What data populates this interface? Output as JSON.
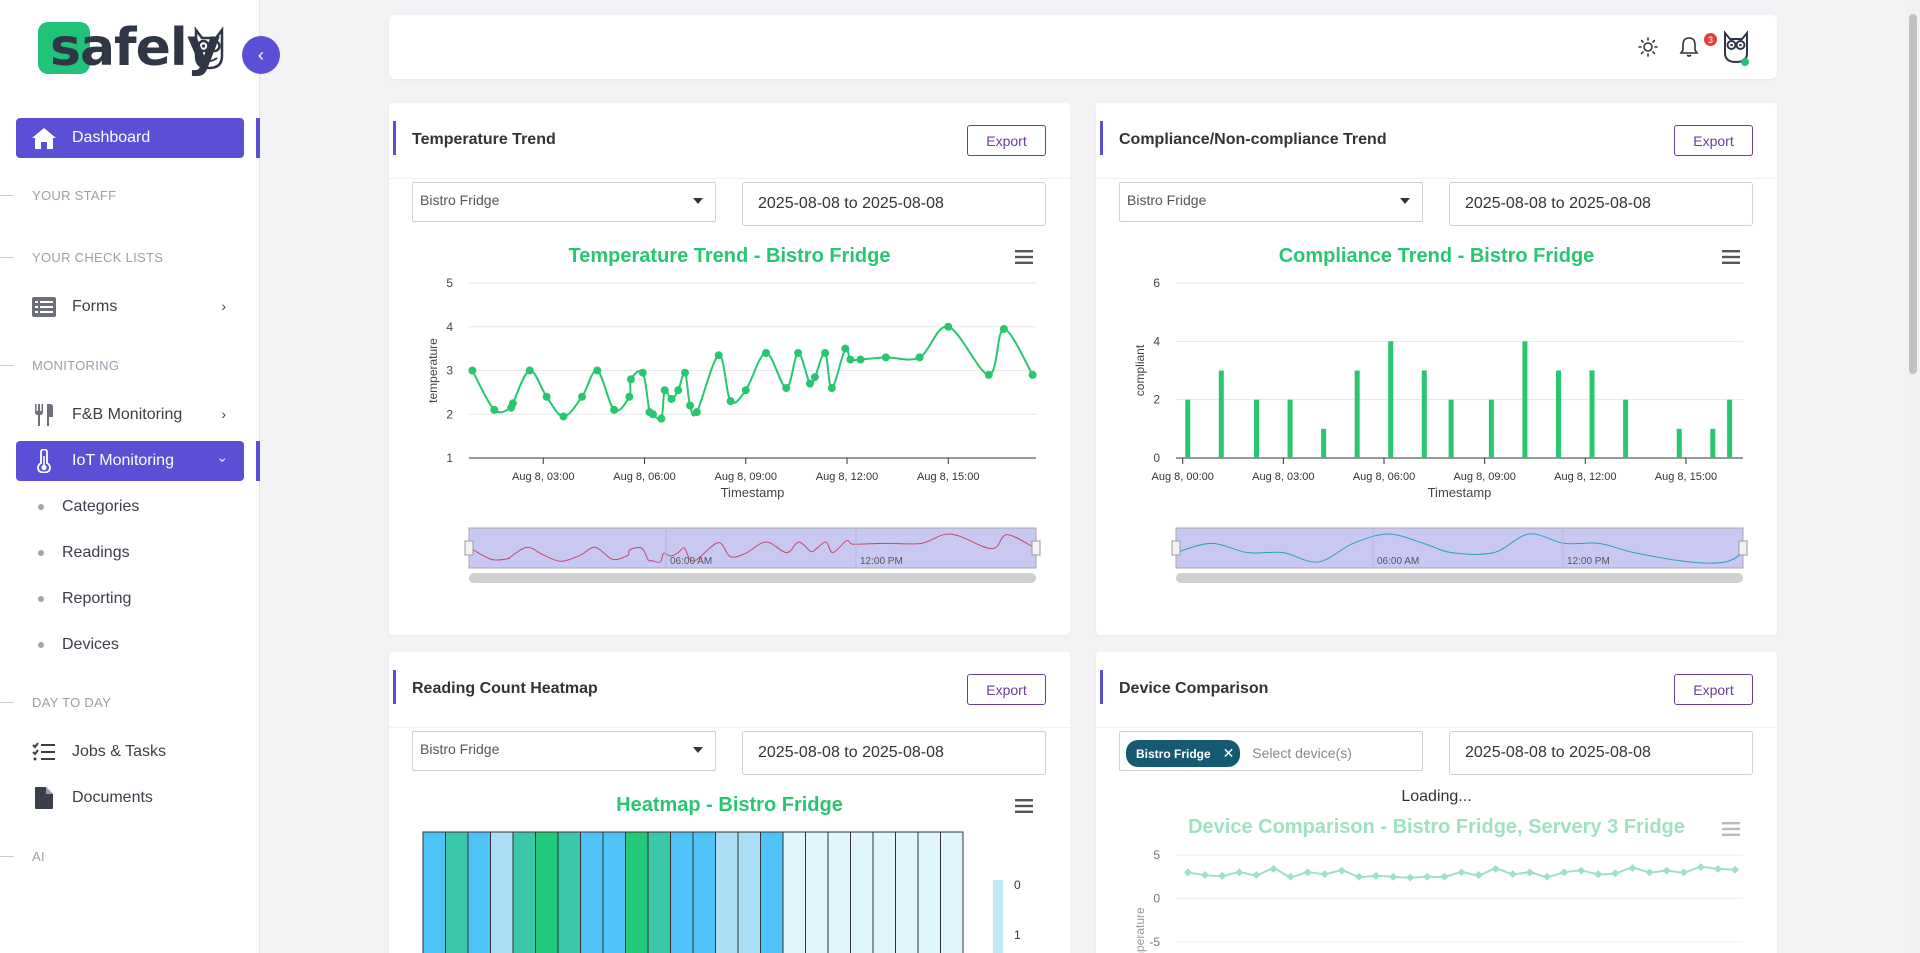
{
  "brand": {
    "name": "safely"
  },
  "sidebar": {
    "dashboard": "Dashboard",
    "sections": {
      "staff": "YOUR STAFF",
      "checklists": "YOUR CHECK LISTS",
      "monitoring": "MONITORING",
      "day": "DAY TO DAY",
      "ai": "AI"
    },
    "forms": "Forms",
    "fnb": "F&B Monitoring",
    "iot": "IoT Monitoring",
    "iot_items": [
      "Categories",
      "Readings",
      "Reporting",
      "Devices"
    ],
    "jobs": "Jobs & Tasks",
    "documents": "Documents"
  },
  "topbar": {
    "notification_count": "3"
  },
  "cards": {
    "temp": {
      "title": "Temperature Trend",
      "export": "Export",
      "device": "Bistro Fridge",
      "date": "2025-08-08 to 2025-08-08",
      "chart_title": "Temperature Trend - Bistro Fridge"
    },
    "compliance": {
      "title": "Compliance/Non-compliance Trend",
      "export": "Export",
      "device": "Bistro Fridge",
      "date": "2025-08-08 to 2025-08-08",
      "chart_title": "Compliance Trend - Bistro Fridge"
    },
    "heatmap": {
      "title": "Reading Count Heatmap",
      "export": "Export",
      "device": "Bistro Fridge",
      "date": "2025-08-08 to 2025-08-08",
      "chart_title": "Heatmap - Bistro Fridge"
    },
    "comparison": {
      "title": "Device Comparison",
      "export": "Export",
      "tag": "Bistro Fridge",
      "placeholder": "Select device(s)",
      "date": "2025-08-08 to 2025-08-08",
      "loading": "Loading...",
      "chart_title": "Device Comparison - Bistro Fridge, Servery 3 Fridge"
    }
  },
  "chart_data": [
    {
      "type": "line",
      "title": "Temperature Trend - Bistro Fridge",
      "xlabel": "Timestamp",
      "ylabel": "temperature",
      "ylim": [
        1,
        5
      ],
      "yticks": [
        1,
        2,
        3,
        4,
        5
      ],
      "xticks": [
        "Aug 8, 03:00",
        "Aug 8, 06:00",
        "Aug 8, 09:00",
        "Aug 8, 12:00",
        "Aug 8, 15:00"
      ],
      "xlim": [
        0.8,
        17.6
      ],
      "navigator_labels": [
        "06:00 AM",
        "12:00 PM"
      ],
      "series": [
        {
          "color": "#28c76f",
          "x": [
            0.9,
            1.55,
            2.05,
            2.1,
            2.6,
            3.1,
            3.6,
            4.15,
            4.6,
            5.1,
            5.55,
            5.6,
            5.95,
            6.15,
            6.25,
            6.5,
            6.6,
            6.8,
            7.0,
            7.2,
            7.35,
            7.55,
            8.2,
            8.55,
            9.0,
            9.6,
            10.2,
            10.55,
            10.9,
            11.05,
            11.35,
            11.55,
            11.95,
            12.1,
            12.4,
            13.15,
            14.15,
            15.0,
            16.2,
            16.65,
            17.5
          ],
          "y": [
            3.0,
            2.1,
            2.15,
            2.25,
            3.0,
            2.4,
            1.95,
            2.4,
            3.0,
            2.1,
            2.4,
            2.8,
            2.95,
            2.05,
            2.0,
            1.9,
            2.55,
            2.35,
            2.55,
            2.95,
            2.2,
            2.05,
            3.35,
            2.3,
            2.55,
            3.4,
            2.6,
            3.4,
            2.7,
            2.85,
            3.4,
            2.6,
            3.5,
            3.25,
            3.25,
            3.3,
            3.3,
            4.0,
            2.9,
            3.95,
            2.9
          ]
        }
      ]
    },
    {
      "type": "bar",
      "title": "Compliance Trend - Bistro Fridge",
      "xlabel": "Timestamp",
      "ylabel": "compliant",
      "ylim": [
        0,
        6
      ],
      "yticks": [
        0,
        2,
        4,
        6
      ],
      "xticks": [
        "Aug 8, 00:00",
        "Aug 8, 03:00",
        "Aug 8, 06:00",
        "Aug 8, 09:00",
        "Aug 8, 12:00",
        "Aug 8, 15:00"
      ],
      "xlim": [
        -0.2,
        16.7
      ],
      "navigator_labels": [
        "06:00 AM",
        "12:00 PM"
      ],
      "color": "#28c76f",
      "x": [
        0.15,
        1.15,
        2.2,
        3.2,
        4.2,
        5.2,
        6.2,
        7.2,
        8.0,
        9.2,
        10.2,
        11.2,
        12.2,
        13.2,
        14.8,
        15.8,
        16.3
      ],
      "values": [
        2,
        3,
        2,
        2,
        1,
        3,
        4,
        3,
        2,
        2,
        4,
        3,
        3,
        2,
        1,
        1,
        2
      ]
    },
    {
      "type": "heatmap",
      "title": "Heatmap - Bistro Fridge",
      "legend_ticks": [
        0,
        1
      ],
      "cells": [
        2,
        3,
        2,
        1,
        3,
        4,
        3,
        2,
        2,
        4,
        3,
        2,
        2,
        1,
        1,
        2,
        0,
        0,
        0,
        0,
        0,
        0,
        0,
        0
      ]
    },
    {
      "type": "line",
      "title": "Device Comparison - Bistro Fridge, Servery 3 Fridge",
      "ylabel": "temperature",
      "yticks": [
        5,
        0,
        -5
      ],
      "ylim": [
        -5,
        5
      ],
      "series": [
        {
          "name": "Bistro Fridge",
          "color": "#9fe2c2",
          "values": [
            3.0,
            2.7,
            2.6,
            3.0,
            2.7,
            3.4,
            2.5,
            3.0,
            2.8,
            3.2,
            2.5,
            2.6,
            2.5,
            2.4,
            2.5,
            2.5,
            3.0,
            2.7,
            3.4,
            2.8,
            3.0,
            2.5,
            3.0,
            3.2,
            2.8,
            2.9,
            3.5,
            3.0,
            3.2,
            3.0,
            3.6,
            3.4,
            3.3
          ]
        }
      ]
    }
  ]
}
